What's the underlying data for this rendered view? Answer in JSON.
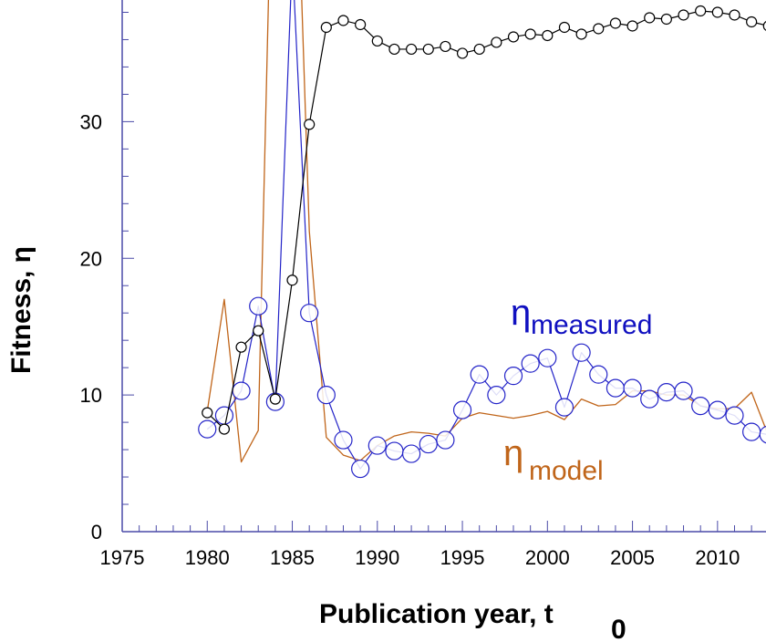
{
  "chart_data": {
    "type": "line",
    "xlabel": "Publication year, t",
    "xlabel_subscript": "0",
    "ylabel": "Fitness, η",
    "xlim": [
      1975,
      2012.85
    ],
    "ylim": [
      0,
      38.9
    ],
    "x_ticks": [
      "1975",
      "1980",
      "1985",
      "1990",
      "1995",
      "2000",
      "2005",
      "2010"
    ],
    "y_ticks": [
      "0",
      "10",
      "20",
      "30"
    ],
    "grid": false,
    "x": [
      1980,
      1981,
      1982,
      1983,
      1984,
      1985,
      1986,
      1987,
      1988,
      1989,
      1990,
      1991,
      1992,
      1993,
      1994,
      1995,
      1996,
      1997,
      1998,
      1999,
      2000,
      2001,
      2002,
      2003,
      2004,
      2005,
      2006,
      2007,
      2008,
      2009,
      2010,
      2011,
      2012,
      2013
    ],
    "series": [
      {
        "key": "black",
        "color": "#000000",
        "marker": "small-circle",
        "values": [
          8.7,
          7.5,
          13.5,
          14.7,
          9.7,
          18.4,
          29.8,
          36.9,
          37.4,
          37.1,
          35.9,
          35.3,
          35.3,
          35.3,
          35.5,
          35.0,
          35.3,
          35.8,
          36.2,
          36.4,
          36.3,
          36.9,
          36.4,
          36.8,
          37.2,
          37.0,
          37.6,
          37.5,
          37.8,
          38.1,
          38.0,
          37.8,
          37.3,
          37.0
        ]
      },
      {
        "key": "model",
        "color": "#c0651a",
        "marker": "none",
        "values": [
          8.8,
          17.0,
          5.1,
          7.4,
          60,
          60,
          22.0,
          6.9,
          5.6,
          5.2,
          6.3,
          7.0,
          7.3,
          7.2,
          7.0,
          8.3,
          8.7,
          8.5,
          8.3,
          8.5,
          8.8,
          8.2,
          9.7,
          9.2,
          9.3,
          10.3,
          10.3,
          10.0,
          10.0,
          9.2,
          9.0,
          9.0,
          10.2,
          7.0
        ]
      },
      {
        "key": "measured",
        "color": "#2323c8",
        "marker": "large-circle",
        "values": [
          7.5,
          8.5,
          10.3,
          16.5,
          9.5,
          42,
          16.0,
          10.0,
          6.7,
          4.6,
          6.3,
          5.9,
          5.7,
          6.4,
          6.7,
          8.9,
          11.5,
          10.0,
          11.4,
          12.3,
          12.7,
          9.1,
          13.1,
          11.5,
          10.5,
          10.5,
          9.7,
          10.2,
          10.3,
          9.2,
          8.9,
          8.5,
          7.3,
          7.1
        ]
      }
    ],
    "annotations": {
      "measured": {
        "symbol": "η",
        "subscript": "measured",
        "color": "#1010c0"
      },
      "model": {
        "symbol": "η",
        "subscript": "model",
        "color": "#c0651a"
      }
    },
    "axis_color": "#4a4aa8"
  }
}
